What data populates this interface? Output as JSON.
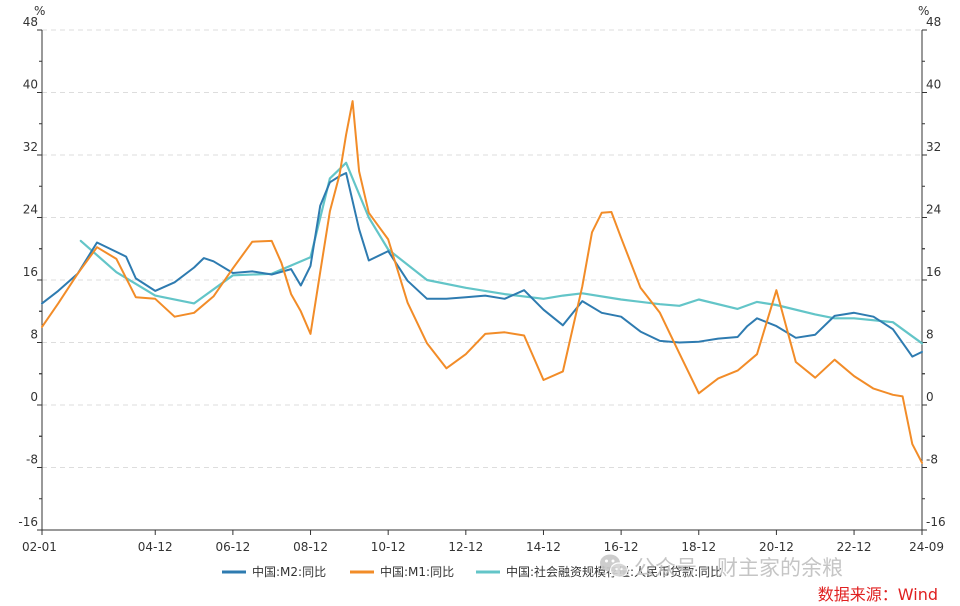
{
  "colors": {
    "m2": "#2e7bb0",
    "m1": "#f28c28",
    "tsf": "#63c5c8",
    "axis": "#333333",
    "grid": "#dddddd",
    "source": "#e02020",
    "watermark": "#bfbfbf"
  },
  "watermark": {
    "icon": "wechat-icon",
    "text": "公众号 · 财主家的余粮"
  },
  "source_note": "数据来源：Wind",
  "chart_data": {
    "type": "line",
    "y_unit_left": "%",
    "y_unit_right": "%",
    "ylim": [
      -16,
      48
    ],
    "yticks": [
      -16,
      -8,
      0,
      8,
      16,
      24,
      32,
      40,
      48
    ],
    "xlim": [
      "2002-01",
      "2024-09"
    ],
    "x_tick_labels": [
      "02-01",
      "04-12",
      "06-12",
      "08-12",
      "10-12",
      "12-12",
      "14-12",
      "16-12",
      "18-12",
      "20-12",
      "22-12",
      "24-09"
    ],
    "x_tick_dates": [
      "2002-01",
      "2004-12",
      "2006-12",
      "2008-12",
      "2010-12",
      "2012-12",
      "2014-12",
      "2016-12",
      "2018-12",
      "2020-12",
      "2022-12",
      "2024-09"
    ],
    "grid": "horizontal-dashed",
    "legend_position": "bottom",
    "series": [
      {
        "name": "中国:M2:同比",
        "color": "#2e7bb0",
        "x": [
          "2002-01",
          "2002-06",
          "2002-12",
          "2003-06",
          "2003-12",
          "2004-03",
          "2004-06",
          "2004-12",
          "2005-06",
          "2005-12",
          "2006-03",
          "2006-06",
          "2006-12",
          "2007-06",
          "2007-12",
          "2008-06",
          "2008-09",
          "2008-12",
          "2009-03",
          "2009-06",
          "2009-09",
          "2009-11",
          "2010-03",
          "2010-06",
          "2010-12",
          "2011-06",
          "2011-12",
          "2012-06",
          "2012-12",
          "2013-06",
          "2013-12",
          "2014-06",
          "2014-12",
          "2015-06",
          "2015-12",
          "2016-06",
          "2016-12",
          "2017-06",
          "2017-12",
          "2018-06",
          "2018-12",
          "2019-06",
          "2019-12",
          "2020-03",
          "2020-06",
          "2020-12",
          "2021-06",
          "2021-12",
          "2022-06",
          "2022-12",
          "2023-06",
          "2023-12",
          "2024-06",
          "2024-09"
        ],
        "values": [
          13.0,
          14.6,
          16.8,
          20.8,
          19.6,
          19.0,
          16.2,
          14.6,
          15.7,
          17.6,
          18.8,
          18.4,
          16.9,
          17.1,
          16.7,
          17.4,
          15.3,
          17.8,
          25.5,
          28.5,
          29.3,
          29.7,
          22.5,
          18.5,
          19.7,
          15.9,
          13.6,
          13.6,
          13.8,
          14.0,
          13.6,
          14.7,
          12.2,
          10.2,
          13.3,
          11.8,
          11.3,
          9.4,
          8.2,
          8.0,
          8.1,
          8.5,
          8.7,
          10.1,
          11.1,
          10.1,
          8.6,
          9.0,
          11.4,
          11.8,
          11.3,
          9.7,
          6.2,
          6.8
        ]
      },
      {
        "name": "中国:M1:同比",
        "color": "#f28c28",
        "x": [
          "2002-01",
          "2002-06",
          "2002-12",
          "2003-06",
          "2003-12",
          "2004-06",
          "2004-12",
          "2005-06",
          "2005-12",
          "2006-06",
          "2006-12",
          "2007-06",
          "2007-12",
          "2008-03",
          "2008-06",
          "2008-09",
          "2008-12",
          "2009-03",
          "2009-06",
          "2009-09",
          "2009-11",
          "2010-01",
          "2010-03",
          "2010-06",
          "2010-12",
          "2011-06",
          "2011-12",
          "2012-06",
          "2012-12",
          "2013-06",
          "2013-12",
          "2014-06",
          "2014-12",
          "2015-06",
          "2015-12",
          "2016-03",
          "2016-06",
          "2016-09",
          "2016-12",
          "2017-06",
          "2017-12",
          "2018-06",
          "2018-12",
          "2019-06",
          "2019-12",
          "2020-06",
          "2020-12",
          "2021-06",
          "2021-12",
          "2022-06",
          "2022-12",
          "2023-06",
          "2023-12",
          "2024-03",
          "2024-06",
          "2024-09"
        ],
        "values": [
          10.0,
          13.0,
          16.8,
          20.2,
          18.7,
          13.8,
          13.6,
          11.3,
          11.8,
          13.9,
          17.5,
          20.9,
          21.0,
          18.2,
          14.2,
          12.0,
          9.1,
          17.0,
          24.8,
          29.5,
          34.6,
          38.9,
          29.9,
          24.6,
          21.2,
          13.1,
          7.9,
          4.7,
          6.5,
          9.1,
          9.3,
          8.9,
          3.2,
          4.3,
          15.2,
          22.1,
          24.6,
          24.7,
          21.4,
          15.0,
          11.8,
          6.6,
          1.5,
          3.4,
          4.4,
          6.5,
          14.7,
          5.5,
          3.5,
          5.8,
          3.7,
          2.1,
          1.3,
          1.1,
          -5.0,
          -7.4
        ]
      },
      {
        "name": "中国:社会融资规模存量:人民币贷款:同比",
        "color": "#63c5c8",
        "x": [
          "2003-01",
          "2003-12",
          "2004-12",
          "2005-12",
          "2006-12",
          "2007-12",
          "2008-12",
          "2009-06",
          "2009-11",
          "2010-06",
          "2010-12",
          "2011-12",
          "2012-12",
          "2013-12",
          "2014-12",
          "2015-06",
          "2015-12",
          "2016-12",
          "2017-12",
          "2018-06",
          "2018-12",
          "2019-12",
          "2020-06",
          "2020-12",
          "2021-12",
          "2022-06",
          "2022-12",
          "2023-12",
          "2024-06",
          "2024-09"
        ],
        "values": [
          21.0,
          17.0,
          14.0,
          13.0,
          16.6,
          16.8,
          18.9,
          29.0,
          31.0,
          24.0,
          19.9,
          16.0,
          15.0,
          14.2,
          13.6,
          14.0,
          14.3,
          13.5,
          12.9,
          12.7,
          13.5,
          12.3,
          13.2,
          12.8,
          11.6,
          11.1,
          11.1,
          10.6,
          8.8,
          7.9
        ]
      }
    ]
  }
}
